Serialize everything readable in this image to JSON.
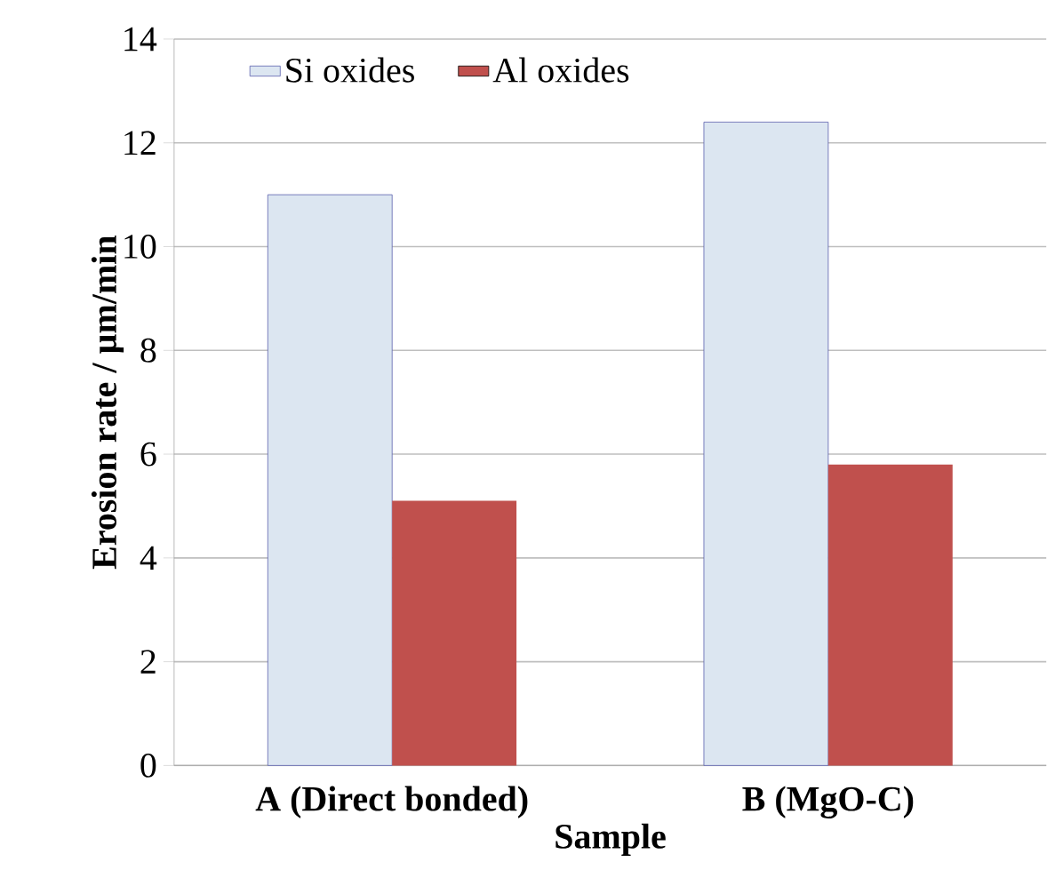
{
  "chart_data": {
    "type": "bar",
    "xlabel": "Sample",
    "ylabel": "Erosion rate  / µm/min",
    "categories": [
      "A (Direct bonded)",
      "B (MgO-C)"
    ],
    "series": [
      {
        "name": "Si oxides",
        "color": "#dce6f1",
        "values": [
          11.0,
          12.4
        ]
      },
      {
        "name": "Al oxides",
        "color": "#c0504d",
        "values": [
          5.1,
          5.8
        ]
      }
    ],
    "ylim": [
      0,
      14
    ],
    "yticks": [
      0,
      2,
      4,
      6,
      8,
      10,
      12,
      14
    ],
    "grid": "y",
    "legend": "top left"
  }
}
